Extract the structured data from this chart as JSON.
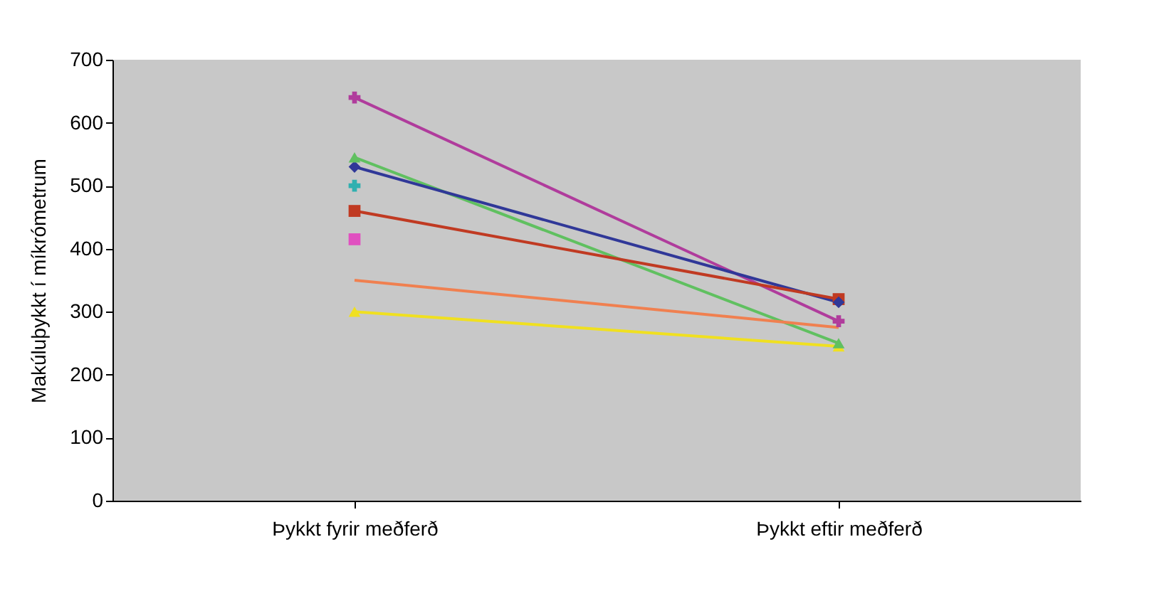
{
  "chart_data": {
    "type": "line",
    "ylabel": "Makúluþykkt í míkrómetrum",
    "categories": [
      "Þykkt fyrir meðferð",
      "Þykkt eftir meðferð"
    ],
    "series": [
      {
        "color": "#b03c9c",
        "marker": "cross",
        "values": [
          640,
          285
        ]
      },
      {
        "color": "#60c060",
        "marker": "triangle",
        "values": [
          545,
          250
        ]
      },
      {
        "color": "#303898",
        "marker": "diamond",
        "values": [
          530,
          315
        ]
      },
      {
        "color": "#30b0b0",
        "marker": "cross",
        "values": [
          500,
          null
        ]
      },
      {
        "color": "#c03a22",
        "marker": "square",
        "values": [
          460,
          320
        ]
      },
      {
        "color": "#e050c0",
        "marker": "square",
        "values": [
          415,
          null
        ]
      },
      {
        "color": "#f08050",
        "marker": "none",
        "values": [
          350,
          275
        ]
      },
      {
        "color": "#f0e020",
        "marker": "triangle",
        "values": [
          300,
          245
        ]
      }
    ],
    "ylim": [
      0,
      700
    ],
    "yticks": [
      0,
      100,
      200,
      300,
      400,
      500,
      600,
      700
    ],
    "grid": false
  }
}
